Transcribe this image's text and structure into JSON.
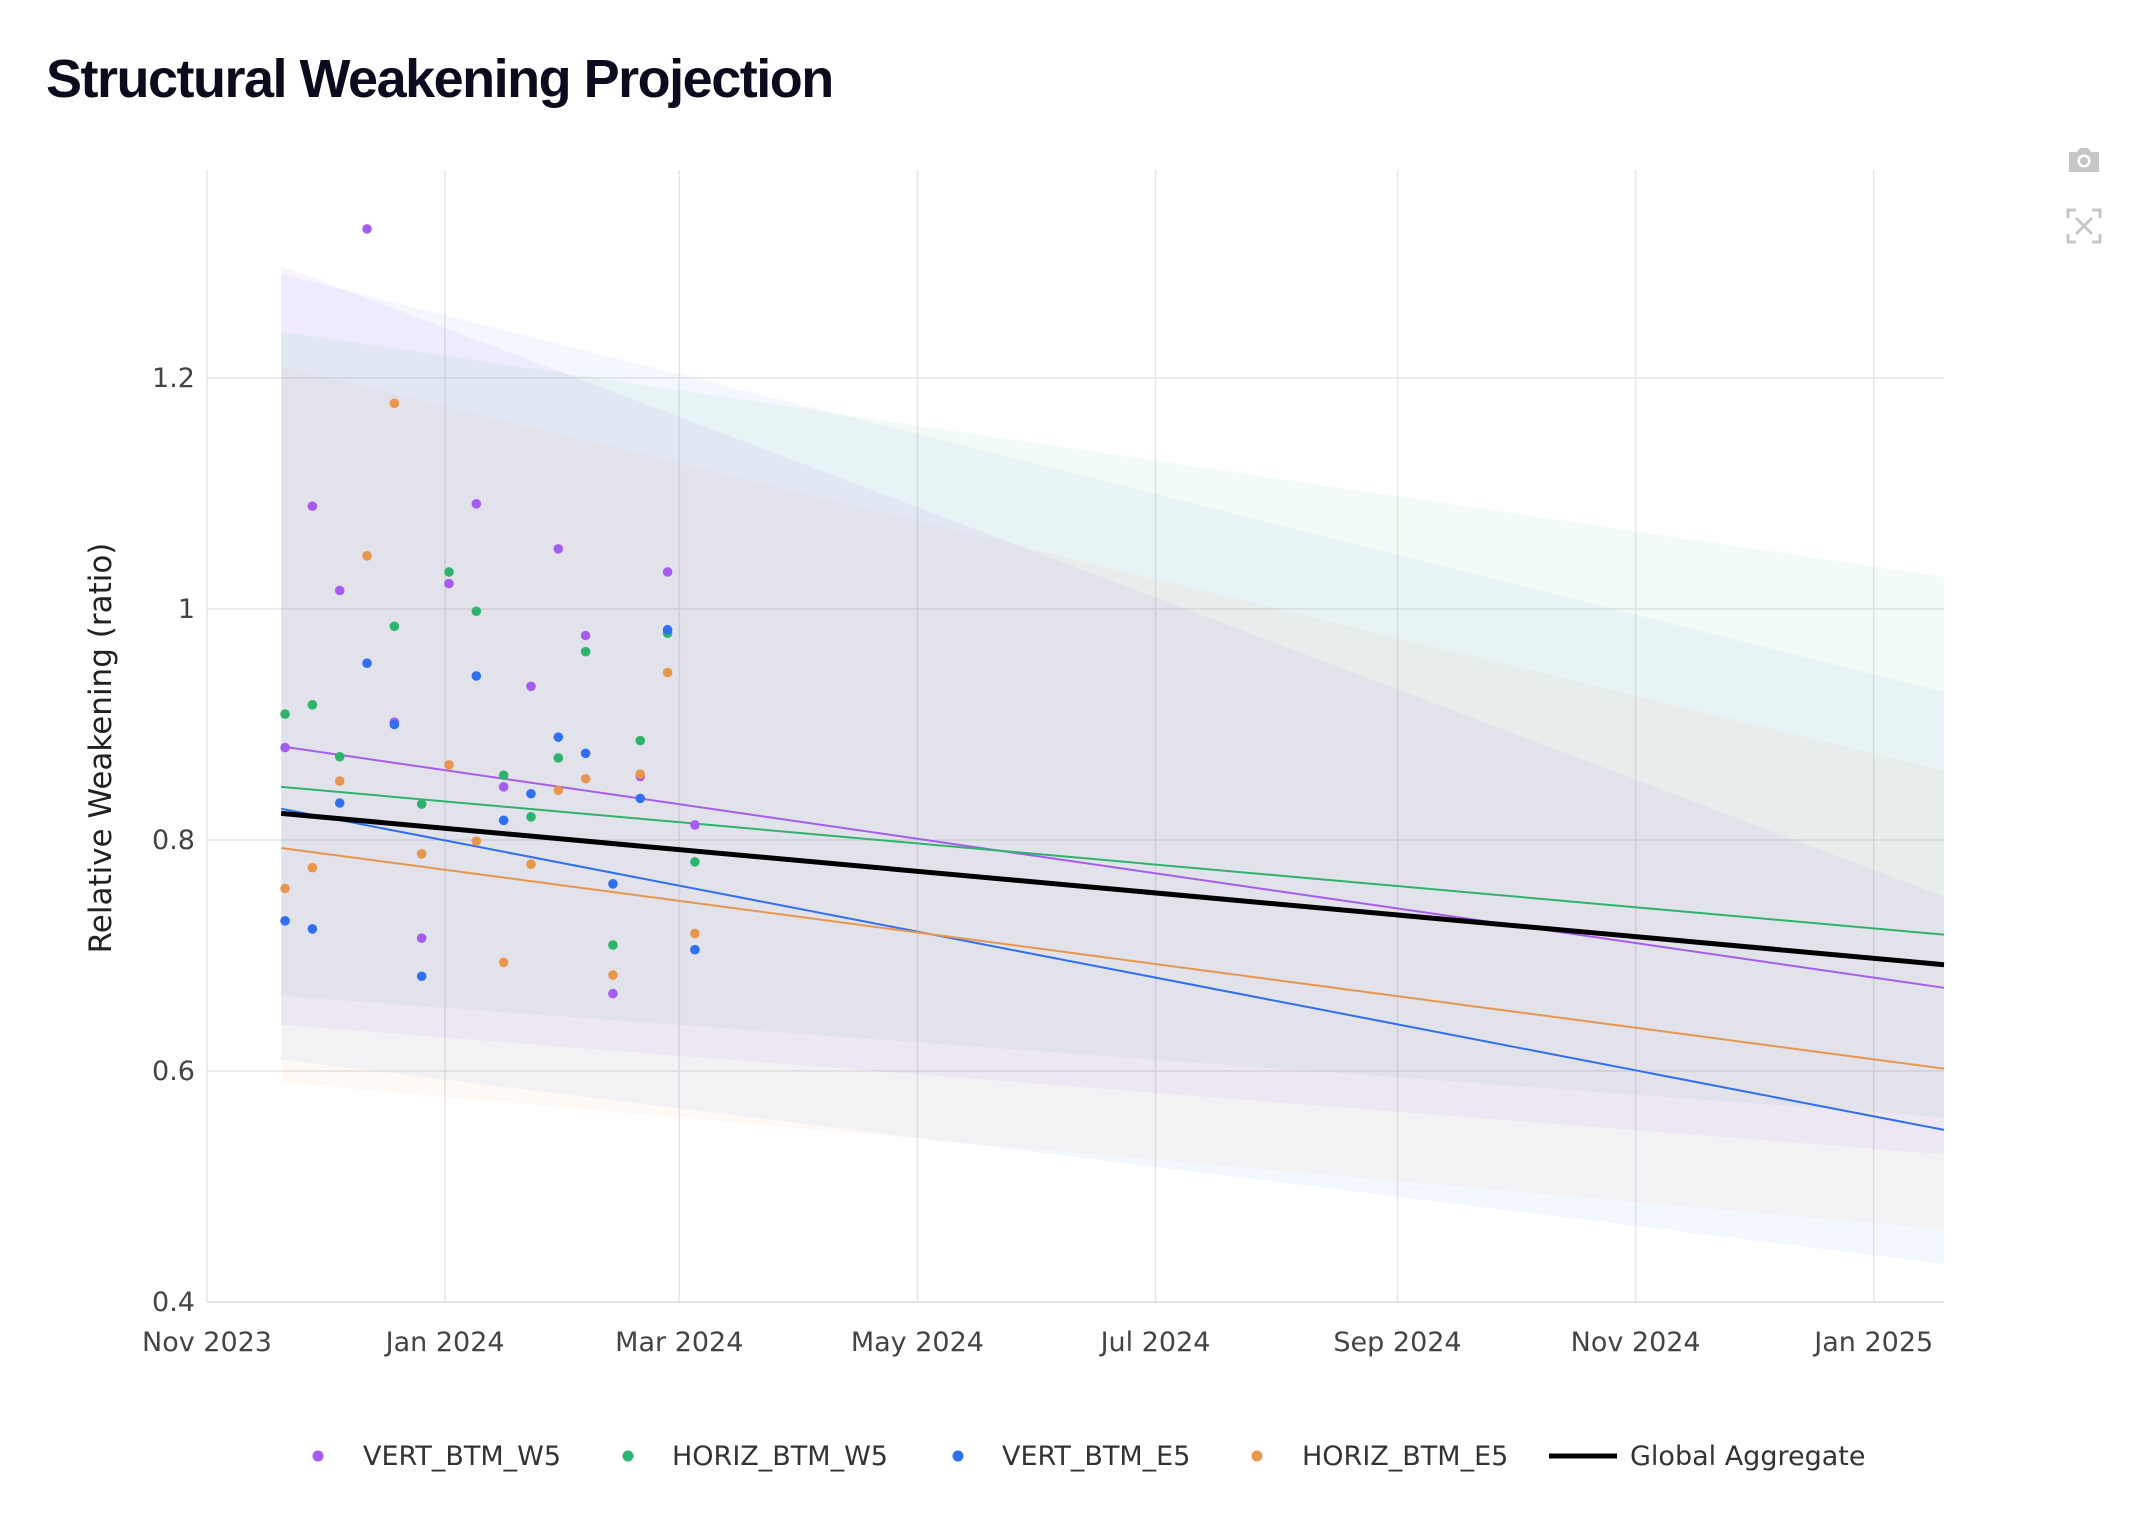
{
  "title": "Structural Weakening Projection",
  "modebar": {
    "camera_icon": "camera-icon",
    "reset_icon": "reset-axes-icon"
  },
  "chart_data": {
    "type": "scatter",
    "title": "Structural Weakening Projection",
    "xlabel": "",
    "ylabel": "Relative Weakening (ratio)",
    "x_ticks": [
      "Nov 2023",
      "Jan 2024",
      "Mar 2024",
      "May 2024",
      "Jul 2024",
      "Sep 2024",
      "Nov 2024",
      "Jan 2025"
    ],
    "x_tick_dates": [
      "2023-11-01",
      "2024-01-01",
      "2024-03-01",
      "2024-05-01",
      "2024-07-01",
      "2024-09-01",
      "2024-11-01",
      "2025-01-01"
    ],
    "xlim": [
      "2023-11-01",
      "2025-01-19"
    ],
    "ylim": [
      0.4,
      1.38
    ],
    "y_ticks": [
      0.4,
      0.6,
      0.8,
      1,
      1.2
    ],
    "y_tick_labels": [
      "0.4",
      "0.6",
      "0.8",
      "1",
      "1.2"
    ],
    "grid": true,
    "legend_position": "bottom-center",
    "series": [
      {
        "name": "VERT_BTM_W5",
        "color": "#a65cf0",
        "points": [
          [
            "2023-11-21",
            0.88
          ],
          [
            "2023-11-28",
            1.089
          ],
          [
            "2023-12-05",
            1.016
          ],
          [
            "2023-12-12",
            1.329
          ],
          [
            "2023-12-19",
            0.902
          ],
          [
            "2023-12-26",
            0.715
          ],
          [
            "2024-01-02",
            1.022
          ],
          [
            "2024-01-09",
            1.091
          ],
          [
            "2024-01-16",
            0.846
          ],
          [
            "2024-01-23",
            0.933
          ],
          [
            "2024-01-30",
            1.052
          ],
          [
            "2024-02-06",
            0.977
          ],
          [
            "2024-02-13",
            0.667
          ],
          [
            "2024-02-20",
            0.855
          ],
          [
            "2024-02-27",
            1.032
          ],
          [
            "2024-03-05",
            0.813
          ]
        ],
        "trend": [
          [
            "2023-11-20",
            0.881
          ],
          [
            "2025-01-19",
            0.672
          ]
        ],
        "band_upper": [
          [
            "2023-11-20",
            1.297
          ],
          [
            "2025-01-19",
            0.751
          ]
        ],
        "band_lower": [
          [
            "2023-11-20",
            0.64
          ],
          [
            "2025-01-19",
            0.528
          ]
        ],
        "band_color": "rgba(166,92,240,0.07)"
      },
      {
        "name": "HORIZ_BTM_W5",
        "color": "#2eb36c",
        "points": [
          [
            "2023-11-21",
            0.909
          ],
          [
            "2023-11-28",
            0.917
          ],
          [
            "2023-12-05",
            0.872
          ],
          [
            "2023-12-19",
            0.985
          ],
          [
            "2023-12-26",
            0.831
          ],
          [
            "2024-01-02",
            1.032
          ],
          [
            "2024-01-09",
            0.998
          ],
          [
            "2024-01-16",
            0.856
          ],
          [
            "2024-01-23",
            0.82
          ],
          [
            "2024-01-30",
            0.871
          ],
          [
            "2024-02-06",
            0.963
          ],
          [
            "2024-02-13",
            0.709
          ],
          [
            "2024-02-20",
            0.886
          ],
          [
            "2024-02-27",
            0.979
          ],
          [
            "2024-03-05",
            0.781
          ]
        ],
        "trend": [
          [
            "2023-11-20",
            0.846
          ],
          [
            "2025-01-19",
            0.718
          ]
        ],
        "band_upper": [
          [
            "2023-11-20",
            1.24
          ],
          [
            "2025-01-19",
            1.028
          ]
        ],
        "band_lower": [
          [
            "2023-11-20",
            0.665
          ],
          [
            "2025-01-19",
            0.56
          ]
        ],
        "band_color": "rgba(46,179,108,0.06)"
      },
      {
        "name": "VERT_BTM_E5",
        "color": "#2f6ff0",
        "points": [
          [
            "2023-11-21",
            0.73
          ],
          [
            "2023-11-28",
            0.723
          ],
          [
            "2023-12-05",
            0.832
          ],
          [
            "2023-12-12",
            0.953
          ],
          [
            "2023-12-19",
            0.9
          ],
          [
            "2023-12-26",
            0.682
          ],
          [
            "2024-01-09",
            0.942
          ],
          [
            "2024-01-16",
            0.817
          ],
          [
            "2024-01-23",
            0.84
          ],
          [
            "2024-01-30",
            0.889
          ],
          [
            "2024-02-06",
            0.875
          ],
          [
            "2024-02-13",
            0.762
          ],
          [
            "2024-02-20",
            0.836
          ],
          [
            "2024-02-27",
            0.982
          ],
          [
            "2024-03-05",
            0.705
          ]
        ],
        "trend": [
          [
            "2023-11-20",
            0.827
          ],
          [
            "2025-01-19",
            0.549
          ]
        ],
        "band_upper": [
          [
            "2023-11-20",
            1.29
          ],
          [
            "2025-01-19",
            0.928
          ]
        ],
        "band_lower": [
          [
            "2023-11-20",
            0.61
          ],
          [
            "2025-01-19",
            0.433
          ]
        ],
        "band_color": "rgba(47,111,240,0.06)"
      },
      {
        "name": "HORIZ_BTM_E5",
        "color": "#e8964e",
        "points": [
          [
            "2023-11-21",
            0.758
          ],
          [
            "2023-11-28",
            0.776
          ],
          [
            "2023-12-05",
            0.851
          ],
          [
            "2023-12-12",
            1.046
          ],
          [
            "2023-12-19",
            1.178
          ],
          [
            "2023-12-26",
            0.788
          ],
          [
            "2024-01-02",
            0.865
          ],
          [
            "2024-01-09",
            0.799
          ],
          [
            "2024-01-16",
            0.694
          ],
          [
            "2024-01-23",
            0.779
          ],
          [
            "2024-01-30",
            0.843
          ],
          [
            "2024-02-06",
            0.853
          ],
          [
            "2024-02-13",
            0.683
          ],
          [
            "2024-02-20",
            0.857
          ],
          [
            "2024-02-27",
            0.945
          ],
          [
            "2024-03-05",
            0.719
          ]
        ],
        "trend": [
          [
            "2023-11-20",
            0.793
          ],
          [
            "2025-01-19",
            0.602
          ]
        ],
        "band_upper": [
          [
            "2023-11-20",
            1.21
          ],
          [
            "2025-01-19",
            0.86
          ]
        ],
        "band_lower": [
          [
            "2023-11-20",
            0.59
          ],
          [
            "2025-01-19",
            0.463
          ]
        ],
        "band_color": "rgba(232,150,78,0.06)"
      }
    ],
    "aggregate": {
      "name": "Global Aggregate",
      "color": "#000000",
      "trend": [
        [
          "2023-11-20",
          0.823
        ],
        [
          "2025-01-19",
          0.692
        ]
      ]
    }
  }
}
